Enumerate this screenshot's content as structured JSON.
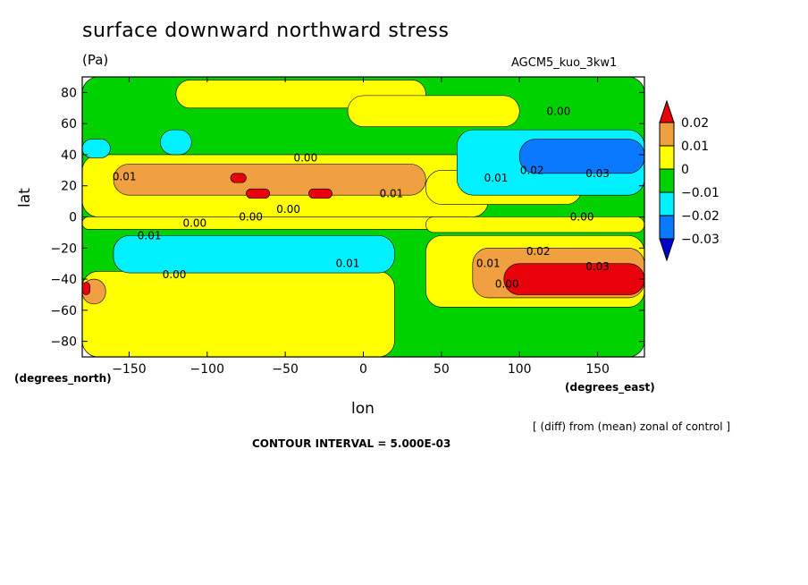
{
  "chart_data": {
    "type": "heatmap",
    "title": "surface downward northward stress",
    "units": "(Pa)",
    "run_label": "AGCM5_kuo_3kw1",
    "xlabel": "lon",
    "ylabel": "lat",
    "x_units_note": "(degrees_east)",
    "y_units_note": "(degrees_north)",
    "footnote": "[ (diff) from (mean) zonal of control ]",
    "contour_interval_text": "CONTOUR INTERVAL = 5.000E-03",
    "xlim": [
      -180,
      180
    ],
    "ylim": [
      -90,
      90
    ],
    "x_ticks": [
      -150,
      -100,
      -50,
      0,
      50,
      100,
      150
    ],
    "y_ticks": [
      80,
      60,
      40,
      20,
      0,
      -20,
      -40,
      -60,
      -80
    ],
    "x_tick_labels": [
      "−150",
      "−100",
      "−50",
      "0",
      "50",
      "100",
      "150"
    ],
    "y_tick_labels": [
      "80",
      "60",
      "40",
      "20",
      "0",
      "−20",
      "−40",
      "−60",
      "−80"
    ],
    "colorbar": {
      "labels": [
        "0.02",
        "0.01",
        "0",
        "−0.01",
        "−0.02",
        "−0.03"
      ],
      "colors": [
        "#e8000b",
        "#f0a040",
        "#ffff00",
        "#00d200",
        "#00f0ff",
        "#0a78ff",
        "#0000c8"
      ]
    },
    "regions": [
      {
        "level": "green",
        "lon": [
          -180,
          180
        ],
        "lat": [
          -90,
          90
        ]
      },
      {
        "level": "yellow",
        "lon": [
          -120,
          40
        ],
        "lat": [
          70,
          88
        ]
      },
      {
        "level": "yellow",
        "lon": [
          -10,
          100
        ],
        "lat": [
          58,
          78
        ]
      },
      {
        "level": "yellow",
        "lon": [
          -180,
          80
        ],
        "lat": [
          0,
          40
        ]
      },
      {
        "level": "yellow",
        "lon": [
          40,
          140
        ],
        "lat": [
          8,
          30
        ]
      },
      {
        "level": "yellow",
        "lon": [
          -180,
          70
        ],
        "lat": [
          -8,
          0
        ]
      },
      {
        "level": "yellow",
        "lon": [
          40,
          180
        ],
        "lat": [
          -10,
          0
        ]
      },
      {
        "level": "yellow",
        "lon": [
          -180,
          20
        ],
        "lat": [
          -90,
          -35
        ]
      },
      {
        "level": "yellow",
        "lon": [
          40,
          180
        ],
        "lat": [
          -58,
          -12
        ]
      },
      {
        "level": "orange",
        "lon": [
          -160,
          40
        ],
        "lat": [
          14,
          34
        ]
      },
      {
        "level": "orange",
        "lon": [
          70,
          180
        ],
        "lat": [
          -52,
          -20
        ]
      },
      {
        "level": "orange",
        "lon": [
          -180,
          -165
        ],
        "lat": [
          -56,
          -40
        ]
      },
      {
        "level": "cyan",
        "lon": [
          -160,
          20
        ],
        "lat": [
          -36,
          -12
        ]
      },
      {
        "level": "cyan",
        "lon": [
          60,
          180
        ],
        "lat": [
          14,
          56
        ]
      },
      {
        "level": "cyan",
        "lon": [
          -180,
          -162
        ],
        "lat": [
          38,
          50
        ]
      },
      {
        "level": "cyan",
        "lon": [
          -130,
          -110
        ],
        "lat": [
          40,
          56
        ]
      },
      {
        "level": "blue",
        "lon": [
          100,
          180
        ],
        "lat": [
          28,
          50
        ]
      },
      {
        "level": "red",
        "lon": [
          -85,
          -75
        ],
        "lat": [
          22,
          28
        ]
      },
      {
        "level": "red",
        "lon": [
          -75,
          -60
        ],
        "lat": [
          12,
          18
        ]
      },
      {
        "level": "red",
        "lon": [
          -35,
          -20
        ],
        "lat": [
          12,
          18
        ]
      },
      {
        "level": "red",
        "lon": [
          90,
          180
        ],
        "lat": [
          -50,
          -30
        ]
      },
      {
        "level": "red",
        "lon": [
          -180,
          -175
        ],
        "lat": [
          -50,
          -42
        ]
      }
    ],
    "contour_labels": [
      {
        "text": "0.00",
        "lon": 125,
        "lat": 68
      },
      {
        "text": "0.00",
        "lon": -37,
        "lat": 38
      },
      {
        "text": "0.01",
        "lon": -153,
        "lat": 26
      },
      {
        "text": "0.01",
        "lon": 18,
        "lat": 15
      },
      {
        "text": "0.01",
        "lon": 85,
        "lat": 25
      },
      {
        "text": "0.02",
        "lon": 108,
        "lat": 30
      },
      {
        "text": "0.03",
        "lon": 150,
        "lat": 28
      },
      {
        "text": "0.00",
        "lon": -108,
        "lat": -4
      },
      {
        "text": "0.00",
        "lon": -72,
        "lat": 0
      },
      {
        "text": "0.00",
        "lon": -48,
        "lat": 5
      },
      {
        "text": "0.00",
        "lon": 140,
        "lat": 0
      },
      {
        "text": "0.01",
        "lon": -137,
        "lat": -12
      },
      {
        "text": "0.01",
        "lon": -10,
        "lat": -30
      },
      {
        "text": "0.00",
        "lon": -121,
        "lat": -37
      },
      {
        "text": "0.02",
        "lon": 112,
        "lat": -22
      },
      {
        "text": "0.03",
        "lon": 150,
        "lat": -32
      },
      {
        "text": "0.01",
        "lon": 80,
        "lat": -30
      },
      {
        "text": "0.00",
        "lon": 92,
        "lat": -43
      }
    ]
  }
}
